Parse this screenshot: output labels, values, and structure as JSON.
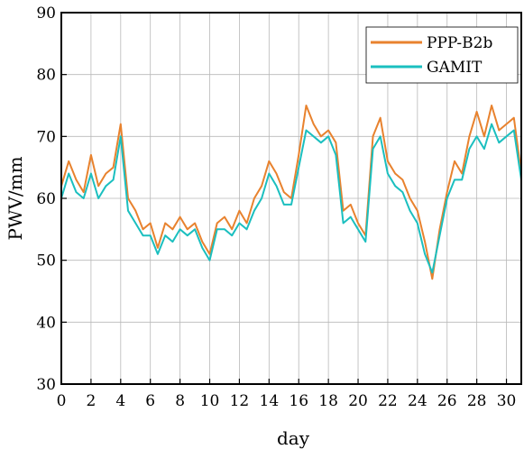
{
  "chart_data": {
    "type": "line",
    "xlabel": "day",
    "ylabel": "PWV/mm",
    "xlim": [
      0,
      31
    ],
    "ylim": [
      30,
      90
    ],
    "x_ticks": [
      0,
      2,
      4,
      6,
      8,
      10,
      12,
      14,
      16,
      18,
      20,
      22,
      24,
      26,
      28,
      30
    ],
    "y_ticks": [
      30,
      40,
      50,
      60,
      70,
      80,
      90
    ],
    "grid": true,
    "legend_position": "top-right",
    "x": [
      0,
      0.5,
      1,
      1.5,
      2,
      2.5,
      3,
      3.5,
      4,
      4.5,
      5,
      5.5,
      6,
      6.5,
      7,
      7.5,
      8,
      8.5,
      9,
      9.5,
      10,
      10.5,
      11,
      11.5,
      12,
      12.5,
      13,
      13.5,
      14,
      14.5,
      15,
      15.5,
      16,
      16.5,
      17,
      17.5,
      18,
      18.5,
      19,
      19.5,
      20,
      20.5,
      21,
      21.5,
      22,
      22.5,
      23,
      23.5,
      24,
      24.5,
      25,
      25.5,
      26,
      26.5,
      27,
      27.5,
      28,
      28.5,
      29,
      29.5,
      30,
      30.5,
      31
    ],
    "series": [
      {
        "name": "PPP-B2b",
        "color": "#e8822e",
        "values": [
          62,
          66,
          63,
          61,
          67,
          62,
          64,
          65,
          72,
          60,
          58,
          55,
          56,
          52,
          56,
          55,
          57,
          55,
          56,
          53,
          51,
          56,
          57,
          55,
          58,
          56,
          60,
          62,
          66,
          64,
          61,
          60,
          67,
          75,
          72,
          70,
          71,
          69,
          58,
          59,
          56,
          54,
          70,
          73,
          66,
          64,
          63,
          60,
          58,
          53,
          47,
          55,
          61,
          66,
          64,
          70,
          74,
          70,
          75,
          71,
          72,
          73,
          64
        ]
      },
      {
        "name": "GAMIT",
        "color": "#1bbfbf",
        "values": [
          60,
          64,
          61,
          60,
          64,
          60,
          62,
          63,
          70,
          58,
          56,
          54,
          54,
          51,
          54,
          53,
          55,
          54,
          55,
          52,
          50,
          55,
          55,
          54,
          56,
          55,
          58,
          60,
          64,
          62,
          59,
          59,
          65,
          71,
          70,
          69,
          70,
          67,
          56,
          57,
          55,
          53,
          68,
          70,
          64,
          62,
          61,
          58,
          56,
          51,
          48,
          54,
          60,
          63,
          63,
          68,
          70,
          68,
          72,
          69,
          70,
          71,
          63
        ]
      }
    ]
  }
}
